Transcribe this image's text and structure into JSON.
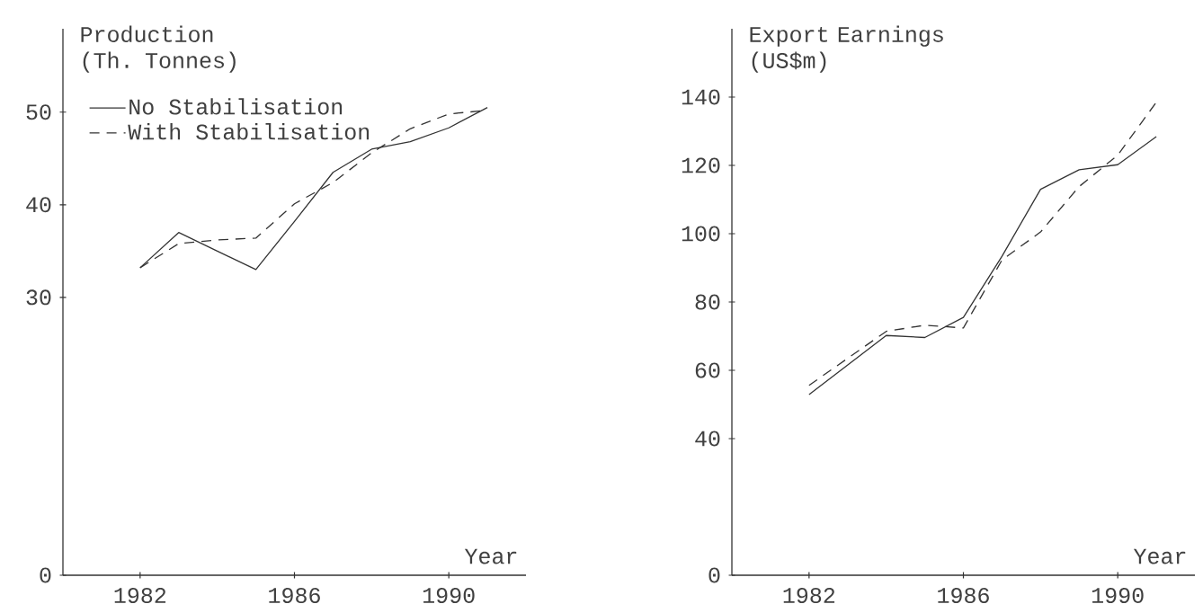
{
  "chart_data": [
    {
      "type": "line",
      "ylabel": "Production (Th. Tonnes)",
      "xlabel": "Year",
      "xlim": [
        1980,
        1992
      ],
      "ylim": [
        0,
        59
      ],
      "xticks": [
        1982,
        1986,
        1990
      ],
      "yticks": [
        0,
        30,
        40,
        50
      ],
      "legend": "top left",
      "series": [
        {
          "name": "No Stabilisation",
          "color": "#333333",
          "line_style": "solid",
          "x": [
            1982,
            1983,
            1984,
            1985,
            1986,
            1987,
            1988,
            1989,
            1990,
            1991
          ],
          "values": [
            33.2,
            37.0,
            35.0,
            33.0,
            38.2,
            43.5,
            46.0,
            46.8,
            48.3,
            50.5
          ]
        },
        {
          "name": "With Stabilisation",
          "color": "#333333",
          "line_style": "dashed",
          "x": [
            1982,
            1983,
            1984,
            1985,
            1986,
            1987,
            1988,
            1989,
            1990,
            1991
          ],
          "values": [
            33.2,
            35.8,
            36.2,
            36.4,
            40.1,
            42.4,
            45.6,
            48.2,
            49.8,
            50.2
          ]
        }
      ]
    },
    {
      "type": "line",
      "ylabel": "Export Earnings (US$m)",
      "xlabel": "Year",
      "xlim": [
        1980,
        1992
      ],
      "ylim": [
        0,
        160
      ],
      "xticks": [
        1982,
        1986,
        1990
      ],
      "yticks": [
        0,
        40,
        60,
        80,
        100,
        120,
        140
      ],
      "series": [
        {
          "color": "#333333",
          "line_style": "solid",
          "x": [
            1982,
            1984,
            1985,
            1986,
            1987,
            1988,
            1989,
            1990,
            1991
          ],
          "values": [
            52.9,
            70.2,
            69.6,
            75.5,
            93.4,
            113.0,
            118.7,
            120.2,
            128.4
          ]
        },
        {
          "color": "#333333",
          "line_style": "dashed",
          "x": [
            1982,
            1984,
            1985,
            1986,
            1987,
            1988,
            1989,
            1990,
            1991
          ],
          "values": [
            55.6,
            71.4,
            73.2,
            72.4,
            92.3,
            100.5,
            113.8,
            123.0,
            138.5
          ]
        }
      ]
    }
  ]
}
